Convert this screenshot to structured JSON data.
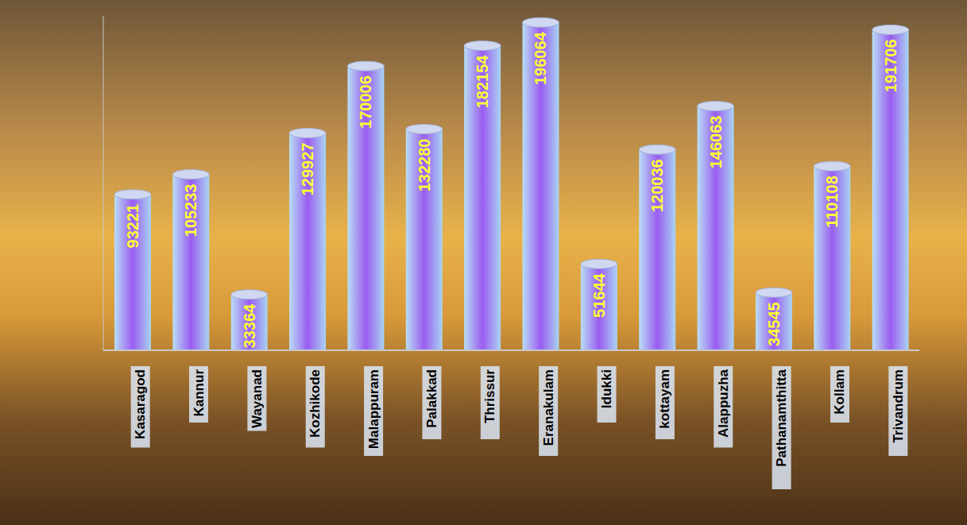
{
  "chart_data": {
    "type": "bar",
    "categories": [
      "Kasaragod",
      "Kannur",
      "Wayanad",
      "Kozhikode",
      "Malappuram",
      "Palakkad",
      "Thrissur",
      "Eranakulam",
      "Idukki",
      "kottayam",
      "Alappuzha",
      "Pathanamthitta",
      "Kollam",
      "Trivandrum"
    ],
    "values": [
      93221,
      105233,
      33364,
      129927,
      170006,
      132280,
      182154,
      196064,
      51644,
      120036,
      146063,
      34545,
      110108,
      191706
    ],
    "color": "#9a5cf0",
    "ylim": [
      0,
      200000
    ],
    "tick_labels": "x",
    "data_labels": true,
    "grid": false
  }
}
